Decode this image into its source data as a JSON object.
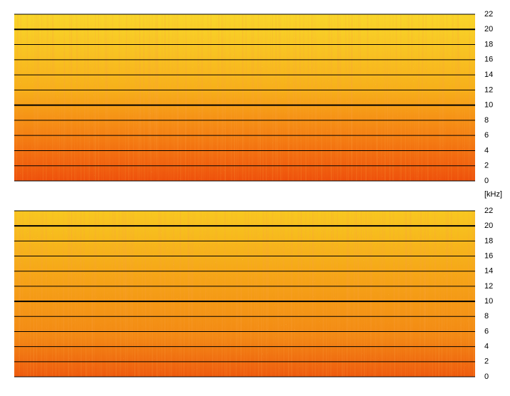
{
  "chart_data": [
    {
      "type": "spectrogram",
      "ylabel": "[kHz]",
      "ylim": [
        0,
        22
      ],
      "yticks": [
        0,
        2,
        4,
        6,
        8,
        10,
        12,
        14,
        16,
        18,
        20,
        22
      ],
      "grid": true,
      "bold_gridlines": [
        10,
        20
      ]
    },
    {
      "type": "spectrogram",
      "ylim": [
        0,
        22
      ],
      "yticks": [
        0,
        2,
        4,
        6,
        8,
        10,
        12,
        14,
        16,
        18,
        20,
        22
      ],
      "grid": true,
      "bold_gridlines": [
        10,
        20
      ]
    }
  ]
}
